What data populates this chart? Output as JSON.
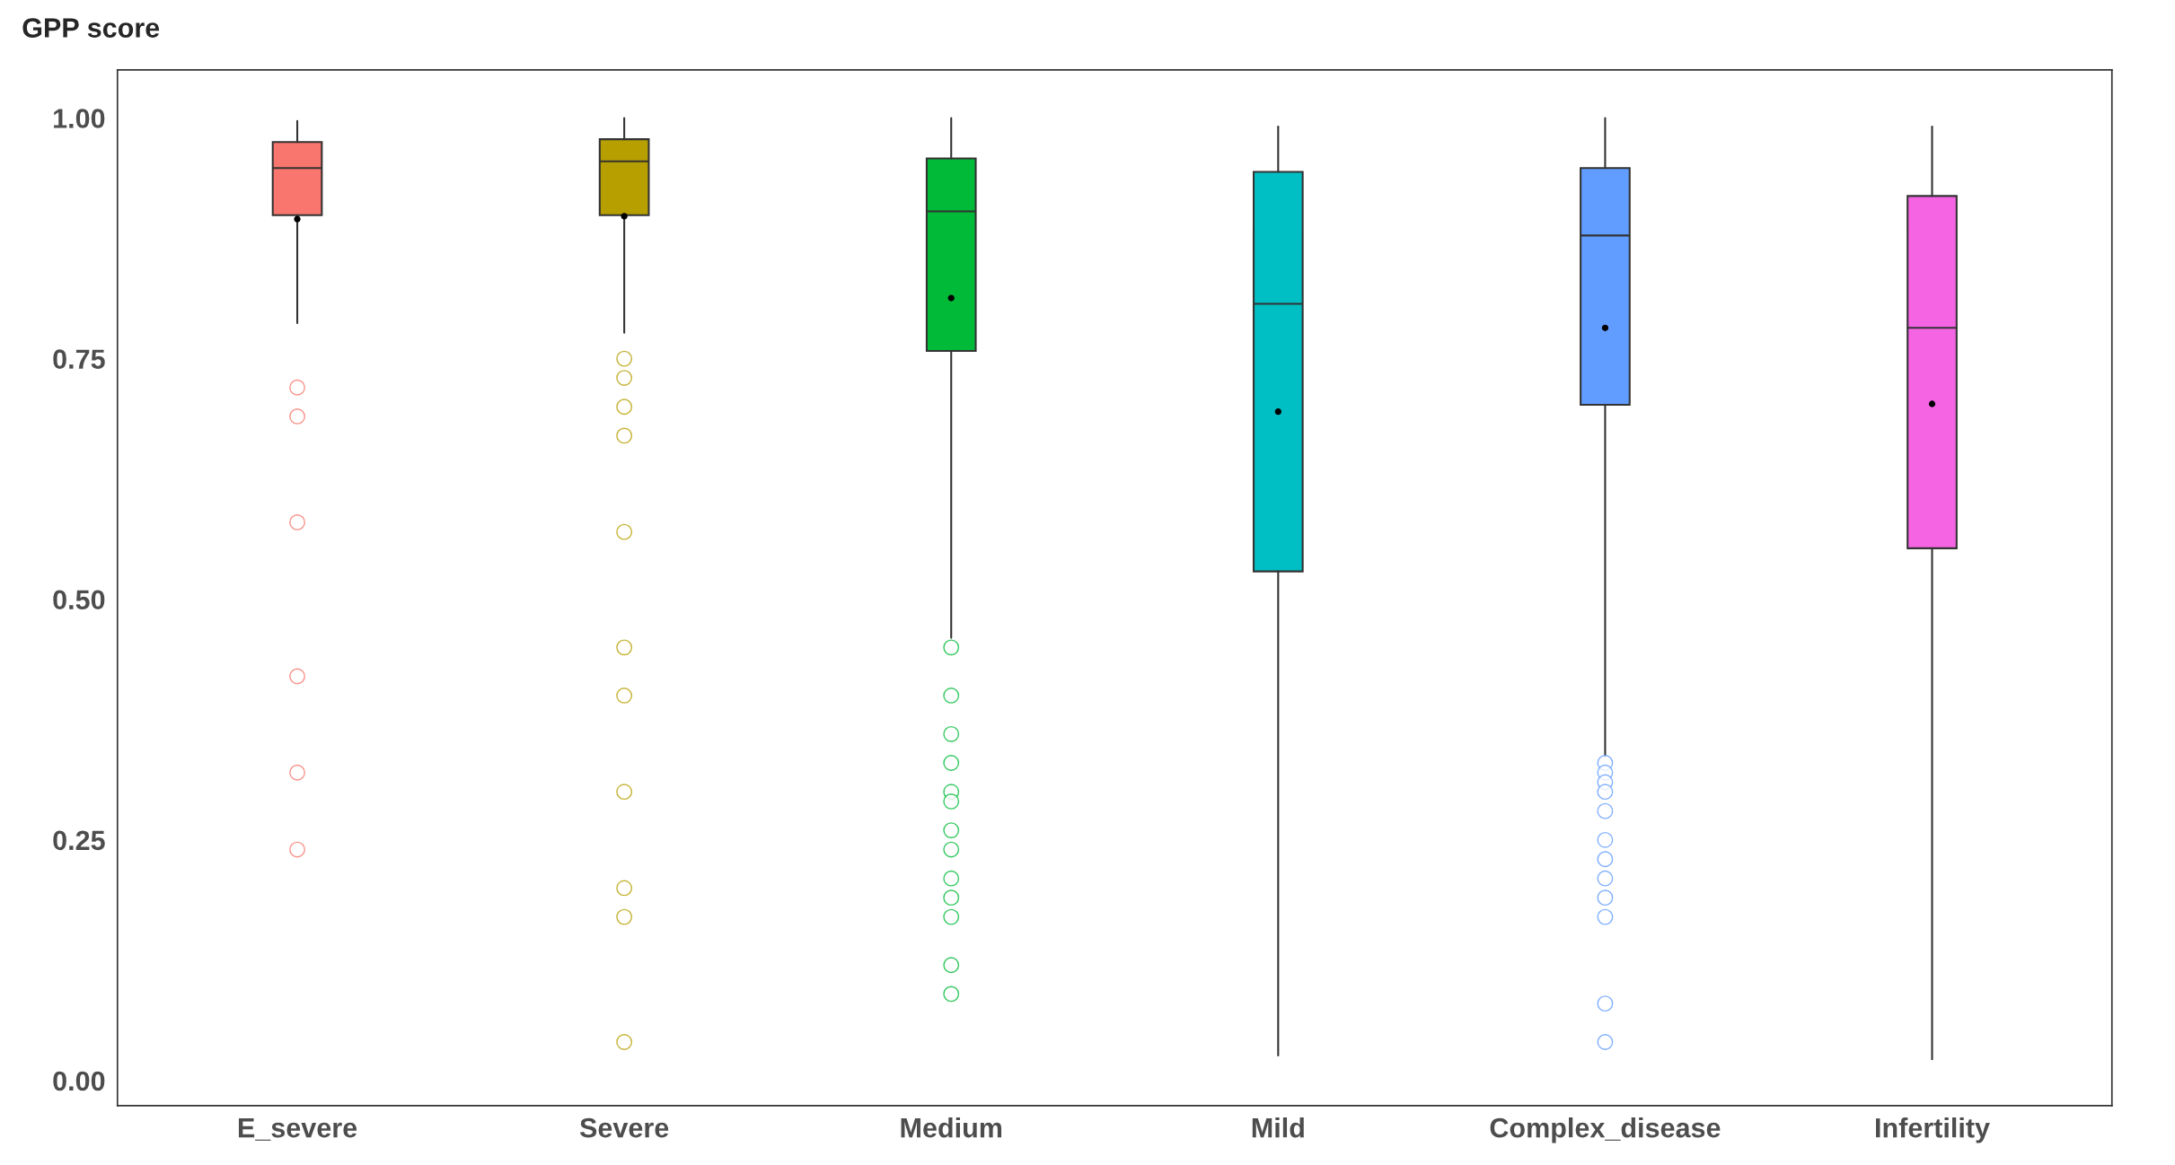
{
  "chart_data": {
    "type": "box",
    "ylabel": "GPP score",
    "categories": [
      "E_severe",
      "Severe",
      "Medium",
      "Mild",
      "Complex_disease",
      "Infertility"
    ],
    "colors": [
      "#f8766d",
      "#b79f00",
      "#00ba38",
      "#00bfc4",
      "#619cff",
      "#f564e3"
    ],
    "boxes": [
      {
        "low": 0.787,
        "q1": 0.899,
        "median": 0.948,
        "q3": 0.975,
        "high": 0.997,
        "mean": 0.895,
        "outliers": [
          0.72,
          0.69,
          0.58,
          0.42,
          0.32,
          0.24
        ]
      },
      {
        "low": 0.777,
        "q1": 0.899,
        "median": 0.955,
        "q3": 0.978,
        "high": 1.0,
        "mean": 0.898,
        "outliers": [
          0.75,
          0.73,
          0.7,
          0.67,
          0.57,
          0.45,
          0.4,
          0.3,
          0.2,
          0.17,
          0.04
        ]
      },
      {
        "low": 0.46,
        "q1": 0.758,
        "median": 0.903,
        "q3": 0.958,
        "high": 1.0,
        "mean": 0.813,
        "outliers": [
          0.45,
          0.4,
          0.36,
          0.33,
          0.3,
          0.29,
          0.26,
          0.24,
          0.21,
          0.19,
          0.17,
          0.12,
          0.09
        ]
      },
      {
        "low": 0.026,
        "q1": 0.529,
        "median": 0.807,
        "q3": 0.944,
        "high": 0.991,
        "mean": 0.695
      },
      {
        "low": 0.337,
        "q1": 0.702,
        "median": 0.878,
        "q3": 0.948,
        "high": 1.0,
        "mean": 0.782,
        "outliers": [
          0.33,
          0.32,
          0.31,
          0.3,
          0.28,
          0.25,
          0.23,
          0.21,
          0.19,
          0.17,
          0.08,
          0.04
        ]
      },
      {
        "low": 0.022,
        "q1": 0.553,
        "median": 0.782,
        "q3": 0.919,
        "high": 0.991,
        "mean": 0.703
      }
    ],
    "ylim": [
      -0.026,
      1.05
    ],
    "yticks": [
      {
        "value": 0,
        "label": "0.00"
      },
      {
        "value": 0.25,
        "label": "0.25"
      },
      {
        "value": 0.5,
        "label": "0.50"
      },
      {
        "value": 0.75,
        "label": "0.75"
      },
      {
        "value": 1,
        "label": "1.00"
      }
    ],
    "grid": false,
    "legend": false
  }
}
